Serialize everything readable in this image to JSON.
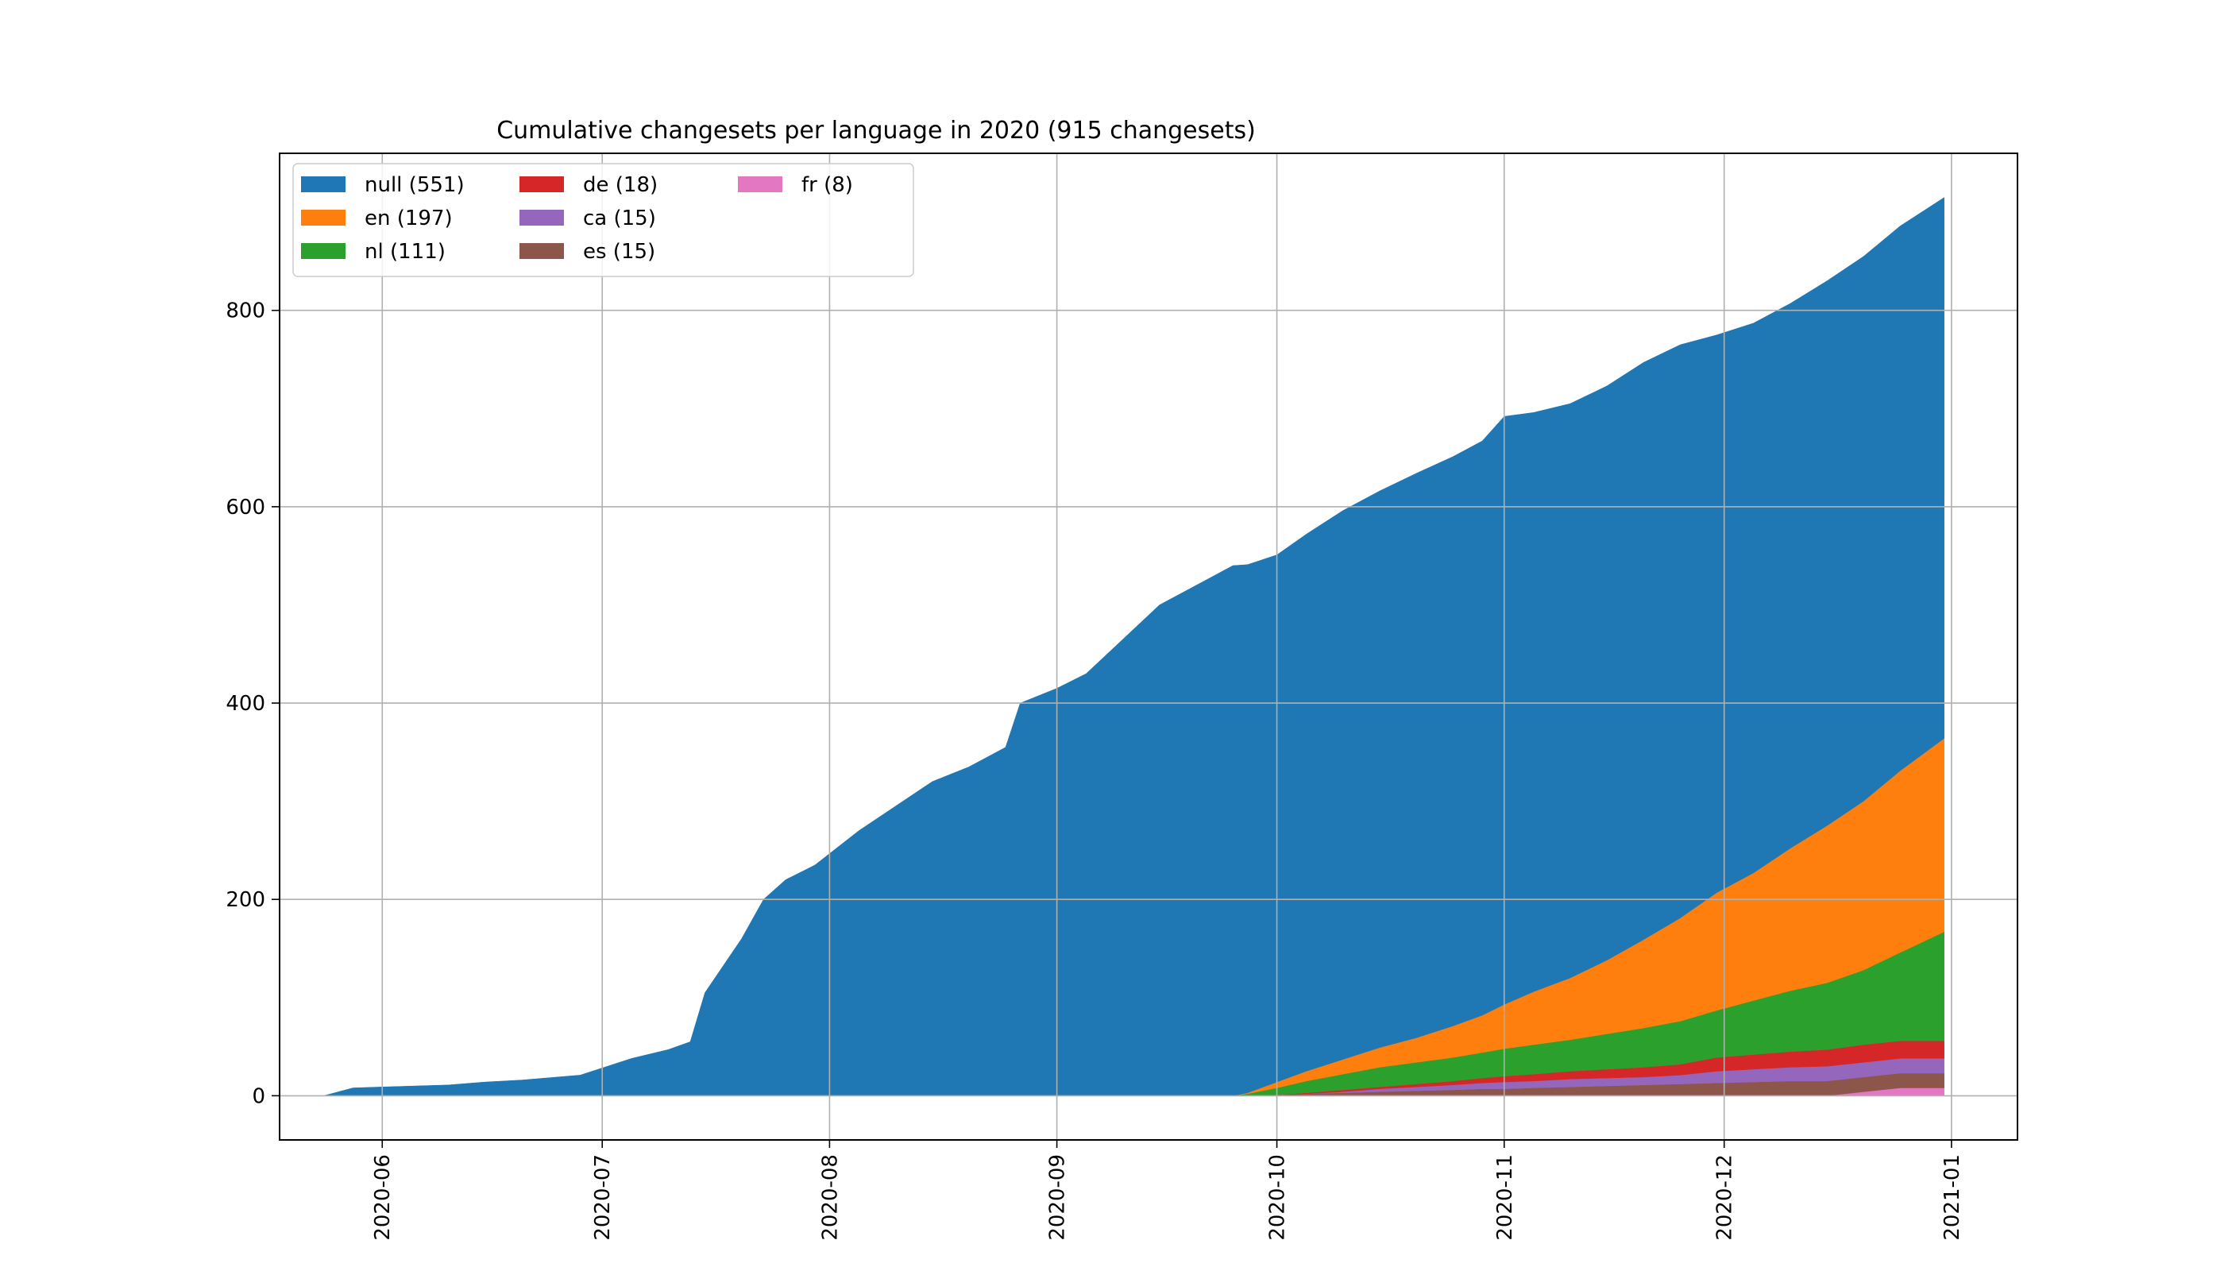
{
  "chart_data": {
    "type": "area",
    "stacked": true,
    "title": "Cumulative changesets per language in 2020 (915 changesets)",
    "xlabel": "",
    "ylabel": "",
    "x_type": "date",
    "xlim": [
      "2020-05-18",
      "2021-01-10"
    ],
    "ylim": [
      -45,
      960
    ],
    "x_ticks": [
      "2020-06-01",
      "2020-07-01",
      "2020-08-01",
      "2020-09-01",
      "2020-10-01",
      "2020-11-01",
      "2020-12-01",
      "2021-01-01"
    ],
    "x_tick_labels": [
      "2020-06",
      "2020-07",
      "2020-08",
      "2020-09",
      "2020-10",
      "2020-11",
      "2020-12",
      "2021-01"
    ],
    "y_ticks": [
      0,
      200,
      400,
      600,
      800
    ],
    "y_tick_labels": [
      "0",
      "200",
      "400",
      "600",
      "800"
    ],
    "grid": true,
    "legend": {
      "placement": "top-left",
      "columns": 3
    },
    "x": [
      "2020-05-24",
      "2020-05-28",
      "2020-06-01",
      "2020-06-10",
      "2020-06-15",
      "2020-06-20",
      "2020-06-28",
      "2020-07-05",
      "2020-07-10",
      "2020-07-13",
      "2020-07-15",
      "2020-07-20",
      "2020-07-23",
      "2020-07-26",
      "2020-07-30",
      "2020-08-05",
      "2020-08-10",
      "2020-08-15",
      "2020-08-20",
      "2020-08-25",
      "2020-08-27",
      "2020-09-01",
      "2020-09-05",
      "2020-09-10",
      "2020-09-15",
      "2020-09-20",
      "2020-09-25",
      "2020-09-27",
      "2020-10-01",
      "2020-10-05",
      "2020-10-10",
      "2020-10-15",
      "2020-10-20",
      "2020-10-25",
      "2020-10-29",
      "2020-11-01",
      "2020-11-05",
      "2020-11-10",
      "2020-11-15",
      "2020-11-20",
      "2020-11-25",
      "2020-11-30",
      "2020-12-05",
      "2020-12-10",
      "2020-12-15",
      "2020-12-20",
      "2020-12-25",
      "2020-12-31"
    ],
    "series": [
      {
        "name": "fr (8)",
        "color": "#e377c2",
        "values": [
          0,
          0,
          0,
          0,
          0,
          0,
          0,
          0,
          0,
          0,
          0,
          0,
          0,
          0,
          0,
          0,
          0,
          0,
          0,
          0,
          0,
          0,
          0,
          0,
          0,
          0,
          0,
          0,
          0,
          0,
          0,
          0,
          0,
          0,
          0,
          0,
          0,
          0,
          0,
          0,
          0,
          0,
          0,
          0,
          0,
          4,
          8,
          8
        ]
      },
      {
        "name": "es (15)",
        "color": "#8c564b",
        "values": [
          0,
          0,
          0,
          0,
          0,
          0,
          0,
          0,
          0,
          0,
          0,
          0,
          0,
          0,
          0,
          0,
          0,
          0,
          0,
          0,
          0,
          0,
          0,
          0,
          0,
          0,
          0,
          0,
          1,
          2,
          3,
          4,
          5,
          6,
          7,
          7,
          8,
          9,
          10,
          11,
          12,
          13,
          14,
          15,
          15,
          15,
          15,
          15
        ]
      },
      {
        "name": "ca (15)",
        "color": "#9467bd",
        "values": [
          0,
          0,
          0,
          0,
          0,
          0,
          0,
          0,
          0,
          0,
          0,
          0,
          0,
          0,
          0,
          0,
          0,
          0,
          0,
          0,
          0,
          0,
          0,
          0,
          0,
          0,
          0,
          0,
          0,
          0,
          1,
          3,
          4,
          5,
          6,
          7,
          7,
          8,
          8,
          8,
          9,
          12,
          13,
          14,
          15,
          15,
          15,
          15
        ]
      },
      {
        "name": "de (18)",
        "color": "#d62728",
        "values": [
          0,
          0,
          0,
          0,
          0,
          0,
          0,
          0,
          0,
          0,
          0,
          0,
          0,
          0,
          0,
          0,
          0,
          0,
          0,
          0,
          0,
          0,
          0,
          0,
          0,
          0,
          0,
          0,
          0,
          1,
          2,
          2,
          3,
          4,
          5,
          6,
          7,
          8,
          9,
          10,
          11,
          14,
          15,
          16,
          17,
          18,
          18,
          18
        ]
      },
      {
        "name": "nl (111)",
        "color": "#2ca02c",
        "values": [
          0,
          0,
          0,
          0,
          0,
          0,
          0,
          0,
          0,
          0,
          0,
          0,
          0,
          0,
          0,
          0,
          0,
          0,
          0,
          0,
          0,
          0,
          0,
          0,
          0,
          0,
          0,
          2,
          7,
          12,
          16,
          20,
          22,
          24,
          26,
          28,
          30,
          32,
          36,
          40,
          44,
          48,
          55,
          62,
          68,
          76,
          90,
          111
        ]
      },
      {
        "name": "en (197)",
        "color": "#ff7f0e",
        "values": [
          0,
          0,
          0,
          0,
          0,
          0,
          0,
          0,
          0,
          0,
          0,
          0,
          0,
          0,
          0,
          0,
          0,
          0,
          0,
          0,
          0,
          0,
          0,
          0,
          0,
          0,
          0,
          1,
          6,
          10,
          15,
          20,
          25,
          32,
          38,
          45,
          54,
          63,
          75,
          90,
          105,
          120,
          130,
          145,
          160,
          172,
          185,
          197
        ]
      },
      {
        "name": "null (551)",
        "color": "#1f77b4",
        "values": [
          0,
          8,
          9,
          11,
          14,
          16,
          21,
          38,
          47,
          55,
          105,
          160,
          200,
          220,
          235,
          270,
          295,
          320,
          335,
          355,
          400,
          415,
          430,
          465,
          500,
          520,
          540,
          538,
          537,
          547,
          559,
          567,
          575,
          580,
          585,
          599,
          590,
          585,
          585,
          588,
          584,
          568,
          560,
          555,
          555,
          555,
          555,
          551
        ]
      }
    ],
    "legend_order": [
      "null (551)",
      "en (197)",
      "nl (111)",
      "de (18)",
      "ca (15)",
      "es (15)",
      "fr (8)"
    ]
  }
}
